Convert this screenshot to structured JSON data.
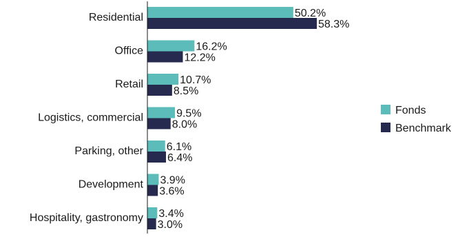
{
  "chart_data": {
    "type": "bar",
    "orientation": "horizontal",
    "categories": [
      "Residential",
      "Office",
      "Retail",
      "Logistics, commercial",
      "Parking, other",
      "Development",
      "Hospitality, gastronomy"
    ],
    "series": [
      {
        "name": "Fonds",
        "color": "#5bbcb9",
        "values": [
          50.2,
          16.2,
          10.7,
          9.5,
          6.1,
          3.9,
          3.4
        ],
        "labels": [
          "50.2%",
          "16.2%",
          "10.7%",
          "9.5%",
          "6.1%",
          "3.9%",
          "3.4%"
        ]
      },
      {
        "name": "Benchmark",
        "color": "#262a4f",
        "values": [
          58.3,
          12.2,
          8.5,
          8.0,
          6.4,
          3.6,
          3.0
        ],
        "labels": [
          "58.3%",
          "12.2%",
          "8.5%",
          "8.0%",
          "6.4%",
          "3.6%",
          "3.0%"
        ]
      }
    ],
    "xlim": [
      0,
      60
    ],
    "grid": false,
    "legend_position": "right"
  }
}
